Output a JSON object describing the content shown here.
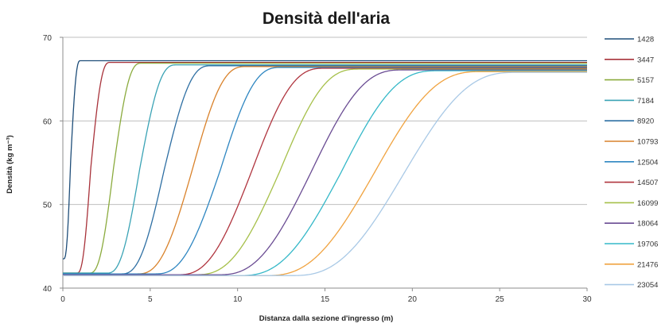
{
  "chart_data": {
    "type": "line",
    "title": "Densità dell'aria",
    "xlabel": "Distanza dalla sezione d'ingresso (m)",
    "ylabel": "Densità (kg m⁻³)",
    "xlim": [
      0,
      30
    ],
    "ylim": [
      40,
      70
    ],
    "xticks": [
      0,
      5,
      10,
      15,
      20,
      25,
      30
    ],
    "yticks": [
      40,
      50,
      60,
      70
    ],
    "grid": "horizontal",
    "legend_position": "right",
    "series": [
      {
        "name": "1428",
        "color": "#1f4e79",
        "rise_start": 0.05,
        "rise_mid": 0.45,
        "rise_end": 1.0,
        "y_start": 43.5,
        "y_end": 67.2
      },
      {
        "name": "3447",
        "color": "#a8323a",
        "rise_start": 0.8,
        "rise_mid": 1.6,
        "rise_end": 2.7,
        "y_start": 41.8,
        "y_end": 67.0
      },
      {
        "name": "5157",
        "color": "#8bab3e",
        "rise_start": 1.5,
        "rise_mid": 2.9,
        "rise_end": 4.5,
        "y_start": 41.8,
        "y_end": 66.9
      },
      {
        "name": "7184",
        "color": "#3aa3b5",
        "rise_start": 2.5,
        "rise_mid": 4.4,
        "rise_end": 6.5,
        "y_start": 41.8,
        "y_end": 66.7
      },
      {
        "name": "8920",
        "color": "#2e6fa3",
        "rise_start": 3.3,
        "rise_mid": 5.8,
        "rise_end": 8.5,
        "y_start": 41.7,
        "y_end": 66.6
      },
      {
        "name": "10793",
        "color": "#d9822b",
        "rise_start": 4.2,
        "rise_mid": 7.4,
        "rise_end": 10.5,
        "y_start": 41.7,
        "y_end": 66.5
      },
      {
        "name": "12504",
        "color": "#2e86c1",
        "rise_start": 5.2,
        "rise_mid": 9.0,
        "rise_end": 12.5,
        "y_start": 41.7,
        "y_end": 66.4
      },
      {
        "name": "14507",
        "color": "#b0353f",
        "rise_start": 6.5,
        "rise_mid": 10.8,
        "rise_end": 15.0,
        "y_start": 41.6,
        "y_end": 66.3
      },
      {
        "name": "16099",
        "color": "#a6c04a",
        "rise_start": 7.5,
        "rise_mid": 12.4,
        "rise_end": 17.0,
        "y_start": 41.6,
        "y_end": 66.2
      },
      {
        "name": "18064",
        "color": "#6a4c93",
        "rise_start": 8.8,
        "rise_mid": 14.2,
        "rise_end": 19.5,
        "y_start": 41.6,
        "y_end": 66.1
      },
      {
        "name": "19706",
        "color": "#35b8c8",
        "rise_start": 10.0,
        "rise_mid": 15.9,
        "rise_end": 21.5,
        "y_start": 41.5,
        "y_end": 66.0
      },
      {
        "name": "21476",
        "color": "#f0a340",
        "rise_start": 11.5,
        "rise_mid": 17.8,
        "rise_end": 24.0,
        "y_start": 41.5,
        "y_end": 65.9
      },
      {
        "name": "23054",
        "color": "#a9c9e6",
        "rise_start": 13.0,
        "rise_mid": 19.5,
        "rise_end": 26.0,
        "y_start": 41.5,
        "y_end": 65.8
      }
    ]
  }
}
